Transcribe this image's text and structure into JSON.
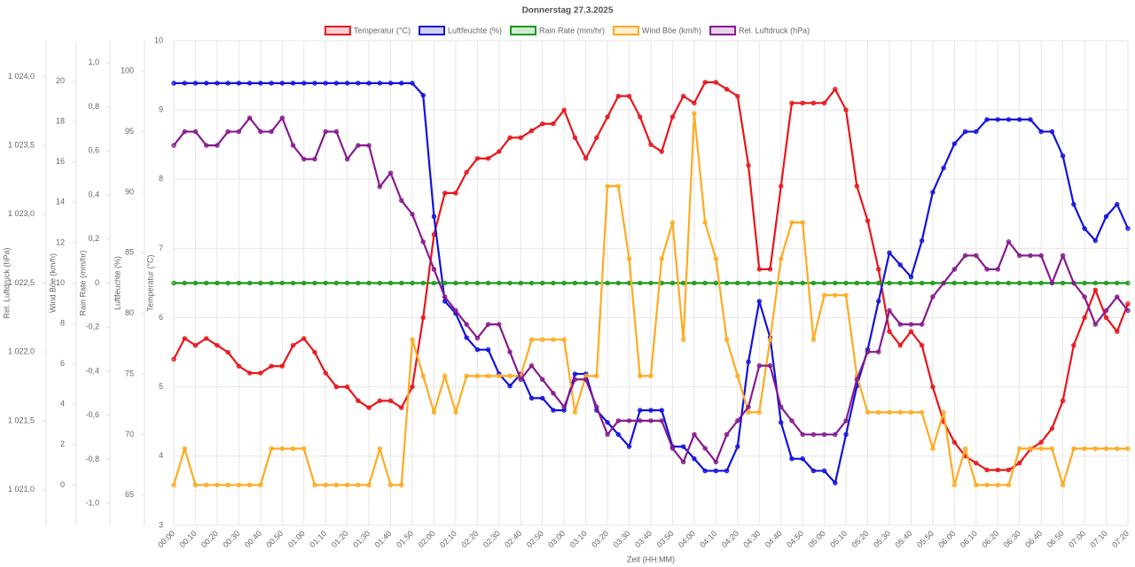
{
  "chart_data": {
    "type": "line",
    "title": "Donnerstag 27.3.2025",
    "x_label": "Zeit (HH:MM)",
    "grid": true,
    "legend": "top",
    "categories": [
      "00:00",
      null,
      "00:10",
      null,
      "00:20",
      null,
      "00:30",
      null,
      "00:40",
      null,
      "00:50",
      null,
      "01:00",
      null,
      "01:10",
      null,
      "01:20",
      null,
      "01:30",
      null,
      "01:40",
      null,
      "01:50",
      null,
      "02:00",
      null,
      "02:10",
      null,
      "02:20",
      null,
      "02:30",
      null,
      "02:40",
      null,
      "02:50",
      null,
      "03:00",
      null,
      "03:10",
      null,
      "03:20",
      null,
      "03:30",
      null,
      "03:40",
      null,
      "03:50",
      null,
      "04:00",
      null,
      "04:10",
      null,
      "04:20",
      null,
      "04:30",
      null,
      "04:40",
      null,
      "04:50",
      null,
      "05:00",
      null,
      "05:10",
      null,
      "05:20",
      null,
      "05:30",
      null,
      "05:40",
      null,
      "05:50",
      null,
      "06:00",
      null,
      "06:10",
      null,
      "06:20",
      null,
      "06:30",
      null,
      "06:40",
      null,
      "06:50",
      null,
      "07:00",
      null,
      "07:10",
      null,
      "07:20"
    ],
    "y_axes": [
      {
        "label": "Temperatur (°C)",
        "ylim": [
          3,
          10
        ],
        "yticks": [
          3,
          4,
          5,
          6,
          7,
          8,
          9,
          10
        ]
      },
      {
        "label": "Luftfeuchte (%)",
        "ylim": [
          62.5,
          102.5
        ],
        "yticks": [
          65,
          70,
          75,
          80,
          85,
          90,
          95,
          100
        ]
      },
      {
        "label": "Rain Rate (mm/hr)",
        "ylim": [
          -1.1,
          1.1
        ],
        "yticks": [
          {
            "value": -1,
            "label": "-1,0"
          },
          {
            "value": -0.8,
            "label": "-0,8"
          },
          {
            "value": -0.6,
            "label": "-0,6"
          },
          {
            "value": -0.4,
            "label": "-0,4"
          },
          {
            "value": -0.2,
            "label": "-0,2"
          },
          0,
          {
            "value": 0.2,
            "label": "0,2"
          },
          {
            "value": 0.4,
            "label": "0,4"
          },
          {
            "value": 0.6,
            "label": "0,6"
          },
          {
            "value": 0.8,
            "label": "0,8"
          },
          {
            "value": 1,
            "label": "1,0"
          }
        ]
      },
      {
        "label": "Wind Böe (km/h)",
        "ylim": [
          -2,
          22
        ],
        "yticks": [
          0,
          2,
          4,
          6,
          8,
          10,
          12,
          14,
          16,
          18,
          20
        ]
      },
      {
        "label": "Rel. Luftdruck (hPa)",
        "ylim": [
          1020.74,
          1024.26
        ],
        "yticks": [
          {
            "value": 1021,
            "label": "1 021,0"
          },
          {
            "value": 1021.5,
            "label": "1 021,5"
          },
          {
            "value": 1022,
            "label": "1 022,0"
          },
          {
            "value": 1022.5,
            "label": "1 022,5"
          },
          {
            "value": 1023,
            "label": "1 023,0"
          },
          {
            "value": 1023.5,
            "label": "1 023,5"
          },
          {
            "value": 1024,
            "label": "1 024,0"
          }
        ]
      }
    ],
    "series": [
      {
        "name": "Temperatur (°C)",
        "color": "#e8151b",
        "axis": 0,
        "values": [
          5.4,
          5.7,
          5.6,
          5.7,
          5.6,
          5.5,
          5.3,
          5.2,
          5.2,
          5.3,
          5.3,
          5.6,
          5.7,
          5.5,
          5.2,
          5.0,
          5.0,
          4.8,
          4.7,
          4.8,
          4.8,
          4.7,
          5.0,
          6.0,
          7.2,
          7.8,
          7.8,
          8.1,
          8.3,
          8.3,
          8.4,
          8.6,
          8.6,
          8.7,
          8.8,
          8.8,
          9.0,
          8.6,
          8.3,
          8.6,
          8.9,
          9.2,
          9.2,
          8.9,
          8.5,
          8.4,
          8.9,
          9.2,
          9.1,
          9.4,
          9.4,
          9.3,
          9.2,
          8.2,
          6.7,
          6.7,
          7.9,
          9.1,
          9.1,
          9.1,
          9.1,
          9.3,
          9.0,
          7.9,
          7.4,
          6.7,
          5.8,
          5.6,
          5.8,
          5.6,
          5.0,
          4.5,
          4.2,
          4.0,
          3.9,
          3.8,
          3.8,
          3.8,
          3.9,
          4.1,
          4.2,
          4.4,
          4.8,
          5.6,
          6.0,
          6.4,
          6.0,
          5.8,
          6.2
        ]
      },
      {
        "name": "Luftfeuchte (%)",
        "color": "#1212dd",
        "axis": 1,
        "values": [
          99,
          99,
          99,
          99,
          99,
          99,
          99,
          99,
          99,
          99,
          99,
          99,
          99,
          99,
          99,
          99,
          99,
          99,
          99,
          99,
          99,
          99,
          99,
          98,
          88,
          81,
          80,
          78,
          77,
          77,
          75,
          74,
          75,
          73,
          73,
          72,
          72,
          75,
          75,
          72,
          71,
          70,
          69,
          72,
          72,
          72,
          69,
          69,
          68,
          67,
          67,
          67,
          69,
          76,
          81,
          78,
          71,
          68,
          68,
          67,
          67,
          66,
          70,
          74,
          77,
          81,
          85,
          84,
          83,
          86,
          90,
          92,
          94,
          95,
          95,
          96,
          96,
          96,
          96,
          96,
          95,
          95,
          93,
          89,
          87,
          86,
          88,
          89,
          87
        ]
      },
      {
        "name": "Rain Rate (mm/hr)",
        "color": "#1b9a1b",
        "axis": 2,
        "values": [
          0,
          0,
          0,
          0,
          0,
          0,
          0,
          0,
          0,
          0,
          0,
          0,
          0,
          0,
          0,
          0,
          0,
          0,
          0,
          0,
          0,
          0,
          0,
          0,
          0,
          0,
          0,
          0,
          0,
          0,
          0,
          0,
          0,
          0,
          0,
          0,
          0,
          0,
          0,
          0,
          0,
          0,
          0,
          0,
          0,
          0,
          0,
          0,
          0,
          0,
          0,
          0,
          0,
          0,
          0,
          0,
          0,
          0,
          0,
          0,
          0,
          0,
          0,
          0,
          0,
          0,
          0,
          0,
          0,
          0,
          0,
          0,
          0,
          0,
          0,
          0,
          0,
          0,
          0,
          0,
          0,
          0,
          0,
          0,
          0,
          0,
          0,
          0,
          0
        ]
      },
      {
        "name": "Wind Böe (km/h)",
        "color": "#ffaa22",
        "axis": 3,
        "values": [
          0,
          1.8,
          0,
          0,
          0,
          0,
          0,
          0,
          0,
          1.8,
          1.8,
          1.8,
          1.8,
          0,
          0,
          0,
          0,
          0,
          0,
          1.8,
          0,
          0,
          7.2,
          5.4,
          3.6,
          5.4,
          3.6,
          5.4,
          5.4,
          5.4,
          5.4,
          5.4,
          5.4,
          7.2,
          7.2,
          7.2,
          7.2,
          3.6,
          5.4,
          5.4,
          14.8,
          14.8,
          11.2,
          5.4,
          5.4,
          11.2,
          13.0,
          7.2,
          18.4,
          13.0,
          11.2,
          7.2,
          5.4,
          3.6,
          3.6,
          7.2,
          11.2,
          13.0,
          13.0,
          7.2,
          9.4,
          9.4,
          9.4,
          5.4,
          3.6,
          3.6,
          3.6,
          3.6,
          3.6,
          3.6,
          1.8,
          3.6,
          0,
          1.8,
          0,
          0,
          0,
          0,
          1.8,
          1.8,
          1.8,
          1.8,
          0,
          1.8,
          1.8,
          1.8,
          1.8,
          1.8,
          1.8
        ]
      },
      {
        "name": "Rel. Luftdruck (hPa)",
        "color": "#861a8e",
        "axis": 4,
        "values": [
          1023.5,
          1023.6,
          1023.6,
          1023.5,
          1023.5,
          1023.6,
          1023.6,
          1023.7,
          1023.6,
          1023.6,
          1023.7,
          1023.5,
          1023.4,
          1023.4,
          1023.6,
          1023.6,
          1023.4,
          1023.5,
          1023.5,
          1023.2,
          1023.3,
          1023.1,
          1023.0,
          1022.8,
          1022.6,
          1022.4,
          1022.3,
          1022.2,
          1022.1,
          1022.2,
          1022.2,
          1022.0,
          1021.8,
          1021.9,
          1021.8,
          1021.7,
          1021.6,
          1021.8,
          1021.8,
          1021.6,
          1021.4,
          1021.5,
          1021.5,
          1021.5,
          1021.5,
          1021.5,
          1021.3,
          1021.2,
          1021.4,
          1021.3,
          1021.2,
          1021.4,
          1021.5,
          1021.6,
          1021.9,
          1021.9,
          1021.6,
          1021.5,
          1021.4,
          1021.4,
          1021.4,
          1021.4,
          1021.5,
          1021.8,
          1022.0,
          1022.0,
          1022.3,
          1022.2,
          1022.2,
          1022.2,
          1022.4,
          1022.5,
          1022.6,
          1022.7,
          1022.7,
          1022.6,
          1022.6,
          1022.8,
          1022.7,
          1022.7,
          1022.7,
          1022.5,
          1022.7,
          1022.5,
          1022.4,
          1022.2,
          1022.3,
          1022.4,
          1022.3
        ]
      }
    ]
  }
}
